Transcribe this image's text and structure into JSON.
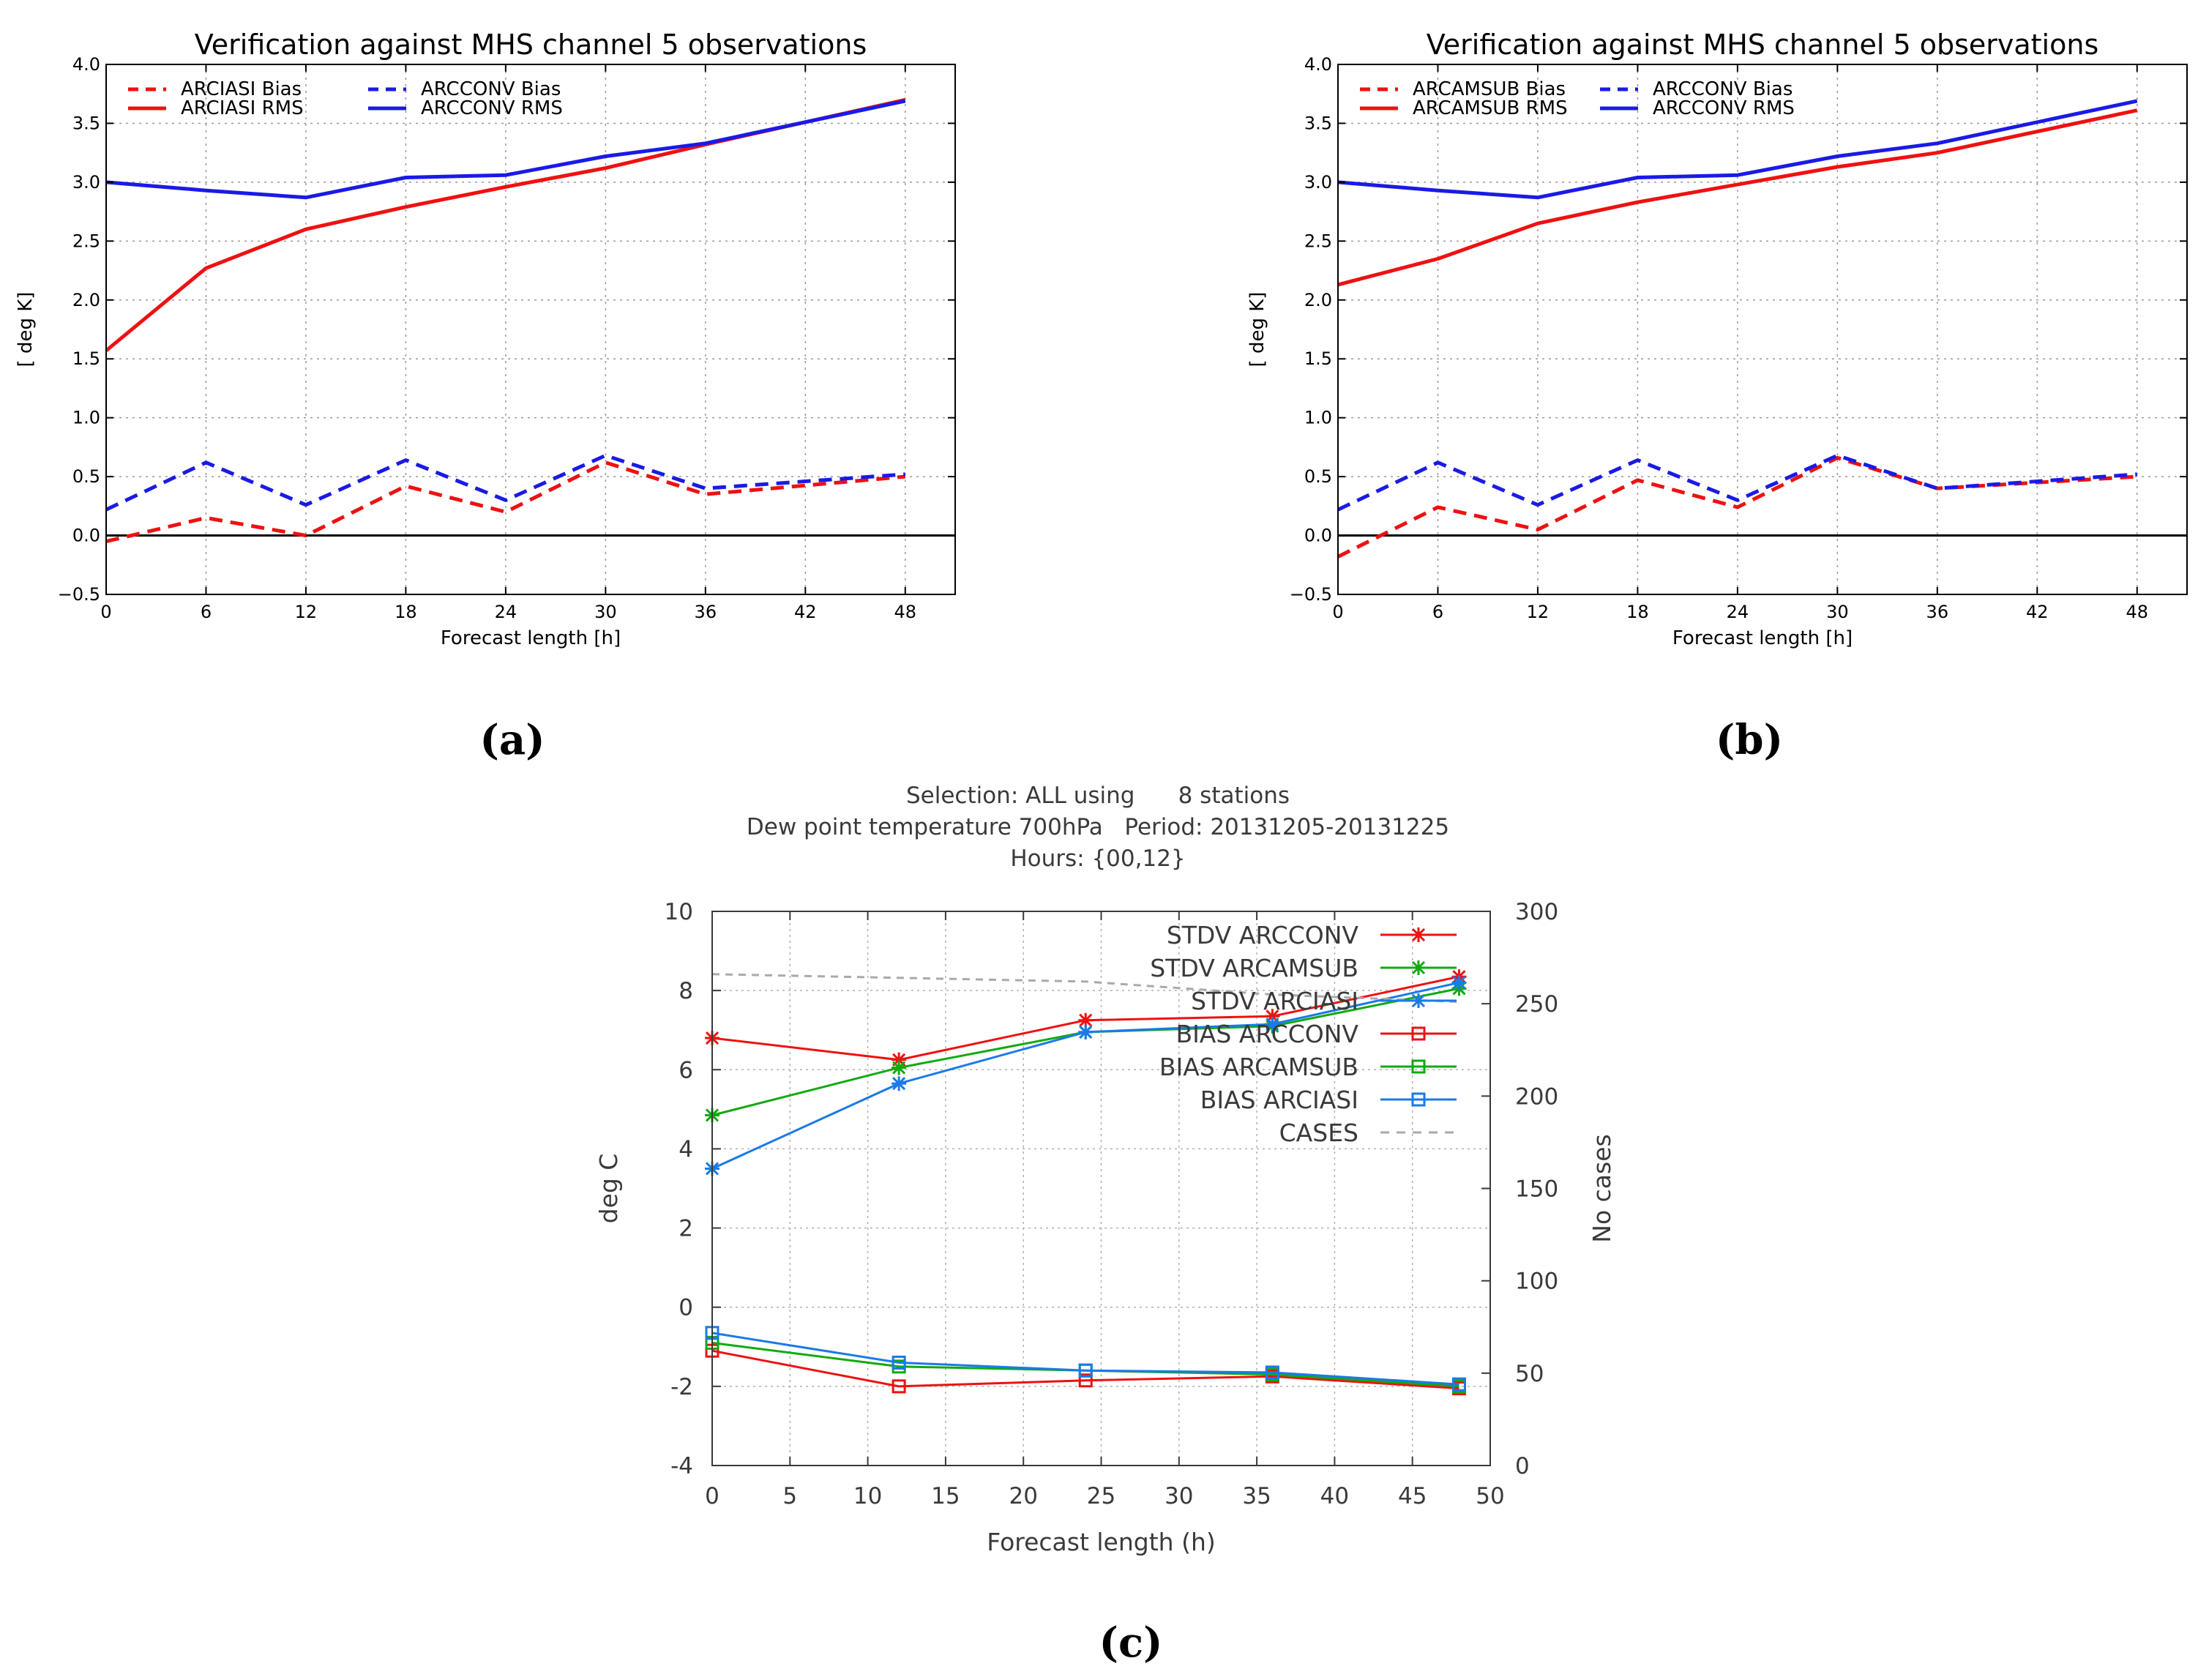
{
  "chart_data": [
    {
      "panel_id": "a",
      "panel_label": "(a)",
      "type": "line",
      "title": "Verification against MHS channel 5 observations",
      "xlabel": "Forecast length [h]",
      "ylabel": "[ deg K]",
      "xlim": [
        0,
        51
      ],
      "ylim": [
        -0.5,
        4.0
      ],
      "xticks": [
        0,
        6,
        12,
        18,
        24,
        30,
        36,
        42,
        48
      ],
      "yticks": [
        -0.5,
        0.0,
        0.5,
        1.0,
        1.5,
        2.0,
        2.5,
        3.0,
        3.5,
        4.0
      ],
      "ytick_labels": [
        "−0.5",
        "0.0",
        "0.5",
        "1.0",
        "1.5",
        "2.0",
        "2.5",
        "3.0",
        "3.5",
        "4.0"
      ],
      "grid": true,
      "zero_line": true,
      "legend_position": "top-left",
      "x": [
        0,
        6,
        12,
        18,
        24,
        30,
        36,
        48
      ],
      "series": [
        {
          "name": "ARCIASI Bias",
          "color": "#ee1111",
          "dash": true,
          "values": [
            -0.05,
            0.15,
            0.0,
            0.42,
            0.2,
            0.62,
            0.35,
            0.5
          ]
        },
        {
          "name": "ARCIASI RMS",
          "color": "#ee1111",
          "dash": false,
          "values": [
            1.57,
            2.27,
            2.6,
            2.79,
            2.96,
            3.12,
            3.32,
            3.7
          ]
        },
        {
          "name": "ARCCONV Bias",
          "color": "#1a1ae6",
          "dash": true,
          "values": [
            0.22,
            0.62,
            0.26,
            0.64,
            0.3,
            0.68,
            0.4,
            0.52
          ]
        },
        {
          "name": "ARCCONV RMS",
          "color": "#1a1ae6",
          "dash": false,
          "values": [
            3.0,
            2.93,
            2.87,
            3.04,
            3.06,
            3.22,
            3.33,
            3.69
          ]
        }
      ]
    },
    {
      "panel_id": "b",
      "panel_label": "(b)",
      "type": "line",
      "title": "Verification against MHS channel 5 observations",
      "xlabel": "Forecast length [h]",
      "ylabel": "[ deg K]",
      "xlim": [
        0,
        51
      ],
      "ylim": [
        -0.5,
        4.0
      ],
      "xticks": [
        0,
        6,
        12,
        18,
        24,
        30,
        36,
        42,
        48
      ],
      "yticks": [
        -0.5,
        0.0,
        0.5,
        1.0,
        1.5,
        2.0,
        2.5,
        3.0,
        3.5,
        4.0
      ],
      "ytick_labels": [
        "−0.5",
        "0.0",
        "0.5",
        "1.0",
        "1.5",
        "2.0",
        "2.5",
        "3.0",
        "3.5",
        "4.0"
      ],
      "grid": true,
      "zero_line": true,
      "legend_position": "top-left",
      "x": [
        0,
        6,
        12,
        18,
        24,
        30,
        36,
        48
      ],
      "series": [
        {
          "name": "ARCAMSUB Bias",
          "color": "#ee1111",
          "dash": true,
          "values": [
            -0.18,
            0.24,
            0.05,
            0.47,
            0.24,
            0.66,
            0.4,
            0.5
          ]
        },
        {
          "name": "ARCAMSUB RMS",
          "color": "#ee1111",
          "dash": false,
          "values": [
            2.13,
            2.35,
            2.65,
            2.83,
            2.98,
            3.13,
            3.25,
            3.61
          ]
        },
        {
          "name": "ARCCONV Bias",
          "color": "#1a1ae6",
          "dash": true,
          "values": [
            0.22,
            0.62,
            0.26,
            0.64,
            0.3,
            0.68,
            0.4,
            0.52
          ]
        },
        {
          "name": "ARCCONV RMS",
          "color": "#1a1ae6",
          "dash": false,
          "values": [
            3.0,
            2.93,
            2.87,
            3.04,
            3.06,
            3.22,
            3.33,
            3.69
          ]
        }
      ]
    },
    {
      "panel_id": "c",
      "panel_label": "(c)",
      "type": "line",
      "title_lines": [
        "Selection: ALL using      8 stations",
        "Dew point temperature 700hPa   Period: 20131205-20131225",
        "Hours: {00,12}"
      ],
      "xlabel": "Forecast length (h)",
      "ylabel": "deg C",
      "y2label": "No cases",
      "xlim": [
        0,
        50
      ],
      "ylim": [
        -4,
        10
      ],
      "y2lim": [
        0,
        300
      ],
      "xticks": [
        0,
        5,
        10,
        15,
        20,
        25,
        30,
        35,
        40,
        45,
        50
      ],
      "yticks": [
        -4,
        -2,
        0,
        2,
        4,
        6,
        8,
        10
      ],
      "y2ticks": [
        0,
        50,
        100,
        150,
        200,
        250,
        300
      ],
      "grid": true,
      "legend_position": "top-right",
      "x": [
        0,
        12,
        24,
        36,
        48
      ],
      "series": [
        {
          "name": "STDV ARCCONV",
          "color": "#ee1111",
          "marker": "star",
          "values": [
            6.8,
            6.25,
            7.25,
            7.35,
            8.35
          ]
        },
        {
          "name": "STDV ARCAMSUB",
          "color": "#11aa11",
          "marker": "star",
          "values": [
            4.85,
            6.05,
            6.95,
            7.1,
            8.05
          ]
        },
        {
          "name": "STDV ARCIASI",
          "color": "#1a7ae6",
          "marker": "star",
          "values": [
            3.5,
            5.65,
            6.95,
            7.15,
            8.2
          ]
        },
        {
          "name": "BIAS ARCCONV",
          "color": "#ee1111",
          "marker": "square",
          "values": [
            -1.1,
            -2.0,
            -1.85,
            -1.75,
            -2.05
          ]
        },
        {
          "name": "BIAS ARCAMSUB",
          "color": "#11aa11",
          "marker": "square",
          "values": [
            -0.9,
            -1.5,
            -1.6,
            -1.7,
            -2.0
          ]
        },
        {
          "name": "BIAS ARCIASI",
          "color": "#1a7ae6",
          "marker": "square",
          "values": [
            -0.65,
            -1.4,
            -1.6,
            -1.65,
            -1.95
          ]
        },
        {
          "name": "CASES",
          "color": "#aaaaaa",
          "marker": "none",
          "dash": true,
          "axis": "y2",
          "values": [
            266,
            264,
            262,
            255,
            251
          ]
        }
      ]
    }
  ]
}
